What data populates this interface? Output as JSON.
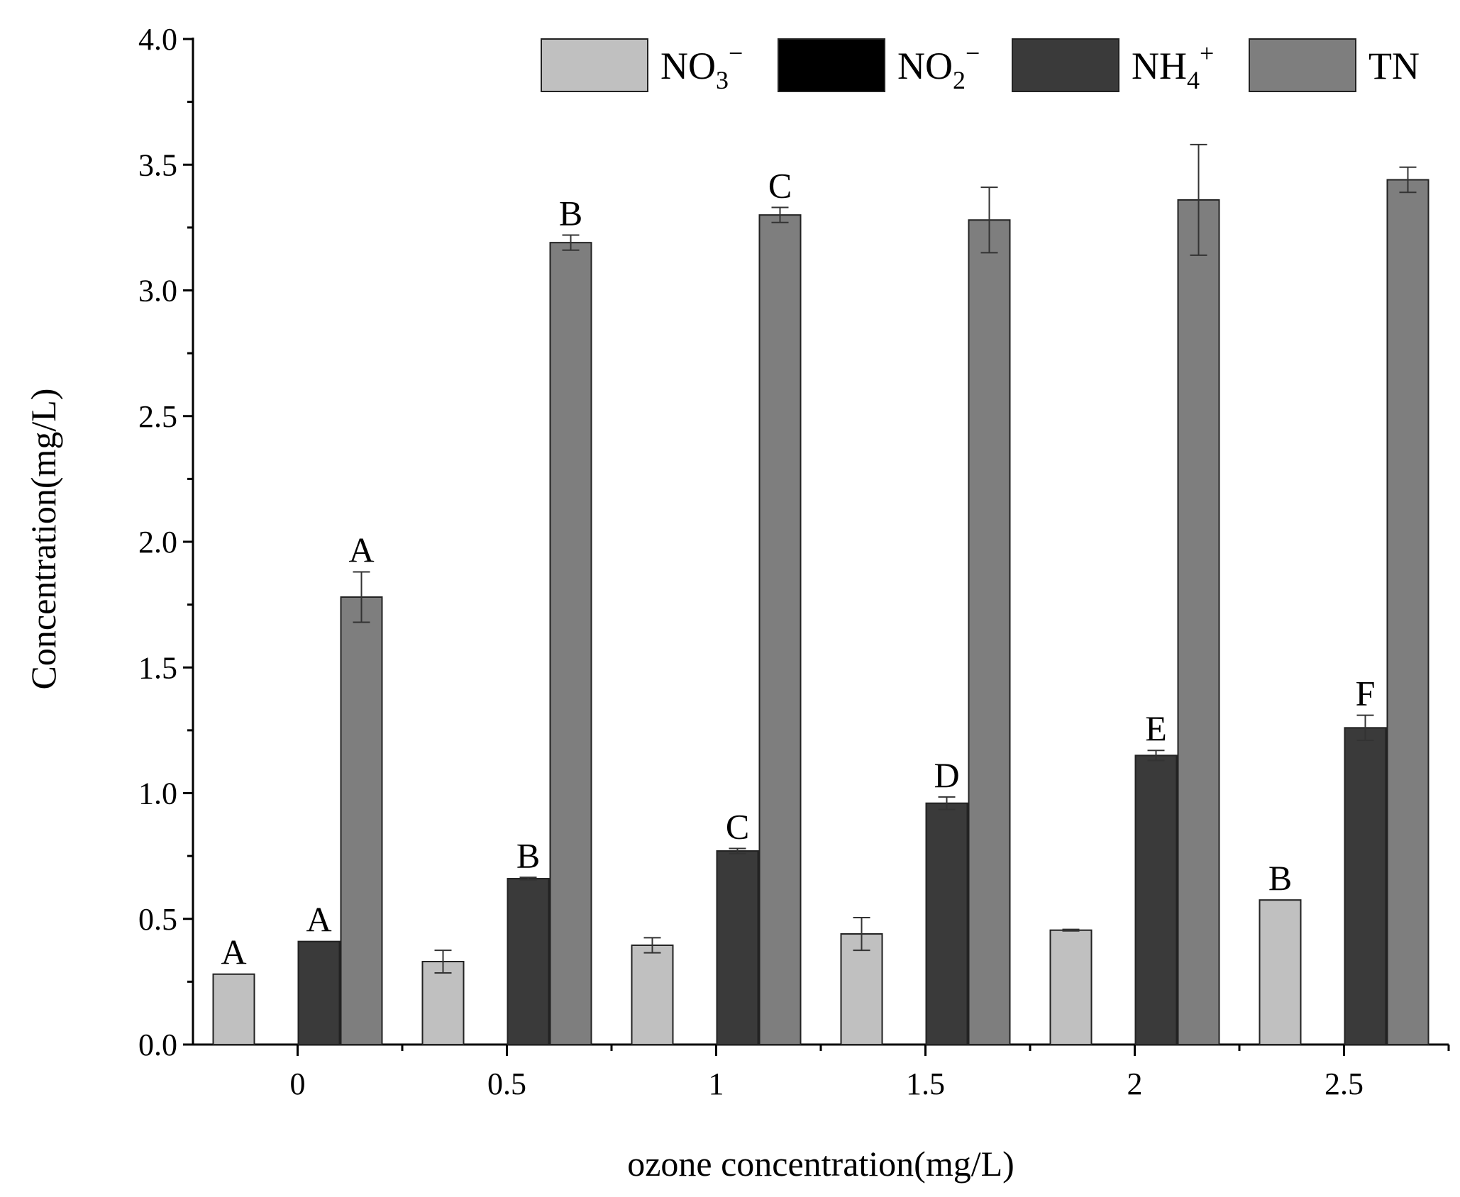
{
  "chart_data": {
    "type": "bar",
    "title": "",
    "xlabel": "ozone concentration(mg/L)",
    "ylabel": "Concentration(mg/L)",
    "ylim": [
      0,
      4.0
    ],
    "yticks": [
      "0.0",
      "0.5",
      "1.0",
      "1.5",
      "2.0",
      "2.5",
      "3.0",
      "3.5",
      "4.0"
    ],
    "categories": [
      "0",
      "0.5",
      "1",
      "1.5",
      "2",
      "2.5"
    ],
    "legend_position": "top-right",
    "series": [
      {
        "name": "NO3−",
        "legend": {
          "base": "NO",
          "sub": "3",
          "sup": "−"
        },
        "color": "#c0c0c0",
        "values": [
          0.28,
          0.33,
          0.395,
          0.44,
          0.455,
          0.575
        ],
        "errors": [
          0,
          0.045,
          0.03,
          0.065,
          0.003,
          0
        ],
        "labels": [
          "A",
          "",
          "",
          "",
          "",
          "B"
        ]
      },
      {
        "name": "NO2−",
        "legend": {
          "base": "NO",
          "sub": "2",
          "sup": "−"
        },
        "color": "#000000",
        "values": [
          0,
          0,
          0,
          0,
          0,
          0
        ],
        "errors": [
          0,
          0,
          0,
          0,
          0,
          0
        ],
        "labels": [
          "",
          "",
          "",
          "",
          "",
          ""
        ]
      },
      {
        "name": "NH4+",
        "legend": {
          "base": "NH",
          "sub": "4",
          "sup": "+"
        },
        "color": "#3a3a3a",
        "values": [
          0.41,
          0.66,
          0.77,
          0.96,
          1.15,
          1.26
        ],
        "errors": [
          0,
          0.005,
          0.01,
          0.025,
          0.02,
          0.05
        ],
        "labels": [
          "A",
          "B",
          "C",
          "D",
          "E",
          "F"
        ]
      },
      {
        "name": "TN",
        "legend": {
          "base": "TN",
          "sub": "",
          "sup": ""
        },
        "color": "#7e7e7e",
        "values": [
          1.78,
          3.19,
          3.3,
          3.28,
          3.36,
          3.44
        ],
        "errors": [
          0.1,
          0.03,
          0.03,
          0.13,
          0.22,
          0.05
        ],
        "labels": [
          "A",
          "B",
          "C",
          "",
          "",
          ""
        ]
      }
    ]
  }
}
